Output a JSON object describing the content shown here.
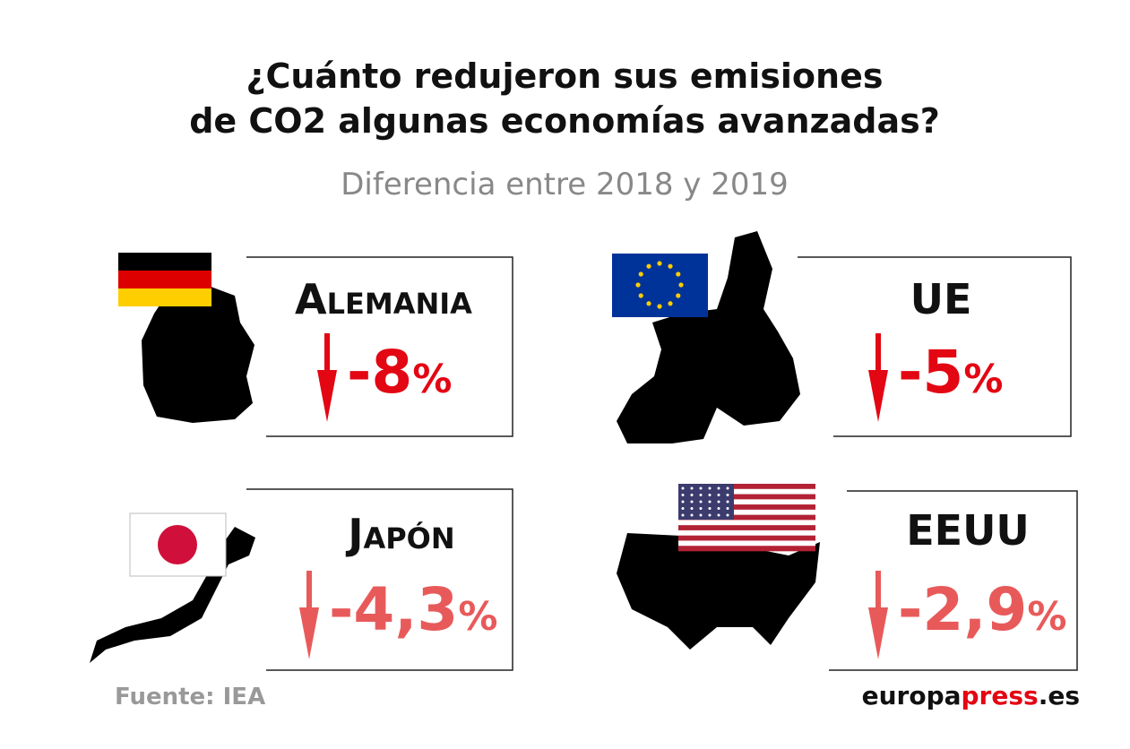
{
  "header": {
    "title": [
      "¿Cuánto redujeron sus emisiones",
      "de CO2 algunas economías avanzadas?"
    ],
    "subtitle": "Diferencia entre 2018 y 2019"
  },
  "cards": [
    {
      "name": "Alemania",
      "value": "-8",
      "unit": "%"
    },
    {
      "name": "UE",
      "value": "-5",
      "unit": "%"
    },
    {
      "name": "Japón",
      "value": "-4,3",
      "unit": "%"
    },
    {
      "name": "EEUU",
      "value": "-2,9",
      "unit": "%"
    }
  ],
  "footer": {
    "source": "Fuente: IEA",
    "brand": [
      "europa",
      "press",
      ".es"
    ]
  }
}
